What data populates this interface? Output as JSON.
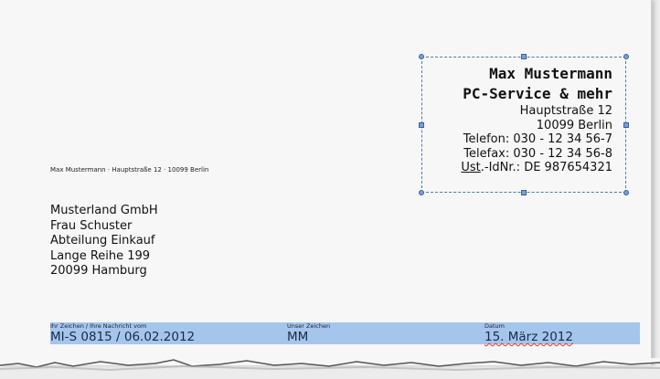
{
  "sender_line": "Max Mustermann · Hauptstraße 12 · 10099 Berlin",
  "recipient": [
    "Musterland GmbH",
    "Frau Schuster",
    "Abteilung Einkauf",
    "Lange Reihe 199",
    "20099 Hamburg"
  ],
  "letterhead": {
    "name": "Max Mustermann",
    "company": "PC-Service & mehr",
    "street": "Hauptstraße 12",
    "city": "10099 Berlin",
    "phone": "Telefon: 030 - 12 34 56-7",
    "fax": "Telefax: 030 - 12 34 56-8",
    "vat_prefix": "Ust",
    "vat_rest": ".-IdNr.: DE 987654321"
  },
  "reference": {
    "your_ref_label": "Ihr Zeichen / Ihre Nachricht vom",
    "your_ref_value": "MI-S 0815 / 06.02.2012",
    "our_ref_label": "Unser Zeichen",
    "our_ref_value": "MM",
    "date_label": "Datum",
    "date_value": "15. März 2012"
  },
  "colors": {
    "selection": "#5577aa",
    "reference_bar": "#a4c6ec"
  }
}
